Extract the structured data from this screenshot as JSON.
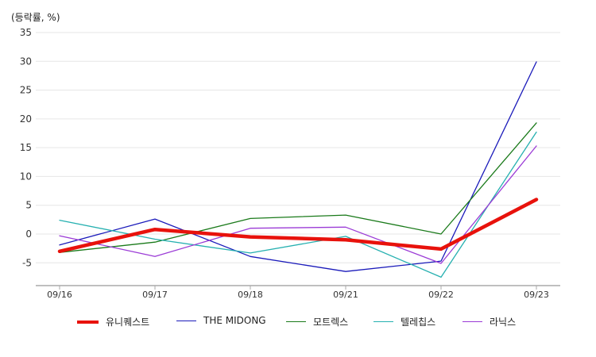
{
  "chart_data": {
    "type": "line",
    "ylabel": "(등락률, %)",
    "categories": [
      "09/16",
      "09/17",
      "09/18",
      "09/21",
      "09/22",
      "09/23"
    ],
    "ylim": [
      -9,
      35
    ],
    "yticks": [
      35,
      30,
      25,
      20,
      15,
      10,
      5,
      0,
      -5
    ],
    "grid": true,
    "legend_position": "bottom",
    "series": [
      {
        "name": "유니퀘스트",
        "color": "#e8120c",
        "width": "thick",
        "values": [
          -3.0,
          0.8,
          -0.5,
          -1.0,
          -2.6,
          6.0
        ]
      },
      {
        "name": "THE MIDONG",
        "color": "#1a1aba",
        "width": "thin",
        "values": [
          -1.9,
          2.6,
          -3.9,
          -6.5,
          -4.7,
          29.9
        ]
      },
      {
        "name": "모트렉스",
        "color": "#1a7a1a",
        "width": "thin",
        "values": [
          -3.2,
          -1.4,
          2.7,
          3.3,
          0.0,
          19.3
        ]
      },
      {
        "name": "텔레칩스",
        "color": "#26b0b0",
        "width": "thin",
        "values": [
          2.4,
          -0.9,
          -3.3,
          -0.4,
          -7.5,
          17.7
        ]
      },
      {
        "name": "라닉스",
        "color": "#9b3bd6",
        "width": "thin",
        "values": [
          -0.3,
          -3.9,
          1.0,
          1.2,
          -5.1,
          15.3
        ]
      }
    ]
  }
}
